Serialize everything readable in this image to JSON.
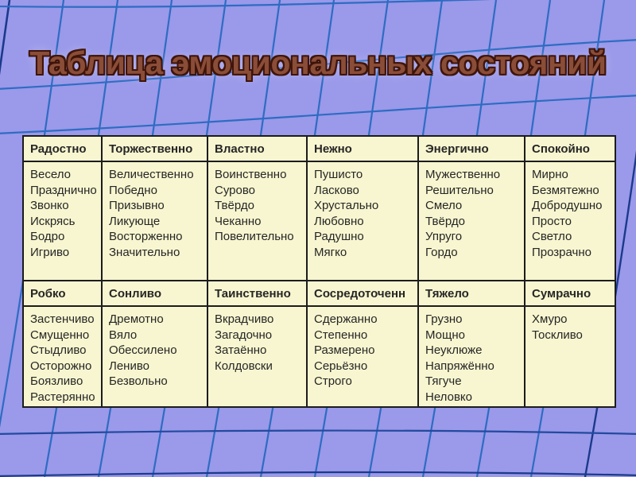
{
  "title": "Таблица эмоциональных состояний",
  "colors": {
    "background": "#9a99ea",
    "grid_line": "#2e6cc2",
    "grid_line_dark": "#1b3a8c",
    "table_background": "#f8f6d0",
    "table_border": "#1c1c1c",
    "title_fill": "#8a4d38",
    "title_outline": "#3f1408",
    "text": "#262626"
  },
  "table": {
    "sections": [
      {
        "headers": [
          "Радостно",
          "Торжественно",
          "Властно",
          "Нежно",
          "Энергично",
          "Спокойно"
        ],
        "cells": [
          [
            "Весело",
            "Празднично",
            "Звонко",
            "Искрясь",
            "Бодро",
            "Игриво"
          ],
          [
            "Величественно",
            "Победно",
            "Призывно",
            "Ликующе",
            "Восторженно",
            "Значительно"
          ],
          [
            "Воинственно",
            "Сурово",
            "Твёрдо",
            "Чеканно",
            "Повелительно"
          ],
          [
            "Пушисто",
            "Ласково",
            "Хрустально",
            "Любовно",
            "Радушно",
            "Мягко"
          ],
          [
            "Мужественно",
            "Решительно",
            "Смело",
            "Твёрдо",
            "Упруго",
            "Гордо"
          ],
          [
            "Мирно",
            "Безмятежно",
            "Добродушно",
            "Просто",
            "Светло",
            "Прозрачно"
          ]
        ]
      },
      {
        "headers": [
          "Робко",
          "Сонливо",
          "Таинственно",
          "Сосредоточенн",
          "Тяжело",
          "Сумрачно"
        ],
        "cells": [
          [
            "Застенчиво",
            "Смущенно",
            "Стыдливо",
            "Осторожно",
            "Боязливо",
            "Растерянно"
          ],
          [
            "Дремотно",
            "Вяло",
            "Обессилено",
            "Лениво",
            "Безвольно"
          ],
          [
            "Вкрадчиво",
            "Загадочно",
            "Затаённо",
            "Колдовски"
          ],
          [
            "Сдержанно",
            "Степенно",
            "Размерено",
            "Серьёзно",
            "Строго"
          ],
          [
            "Грузно",
            "Мощно",
            "Неуклюже",
            "Напряжённо",
            "Тягуче",
            "Неловко"
          ],
          [
            "Хмуро",
            "Тоскливо"
          ]
        ]
      }
    ]
  }
}
